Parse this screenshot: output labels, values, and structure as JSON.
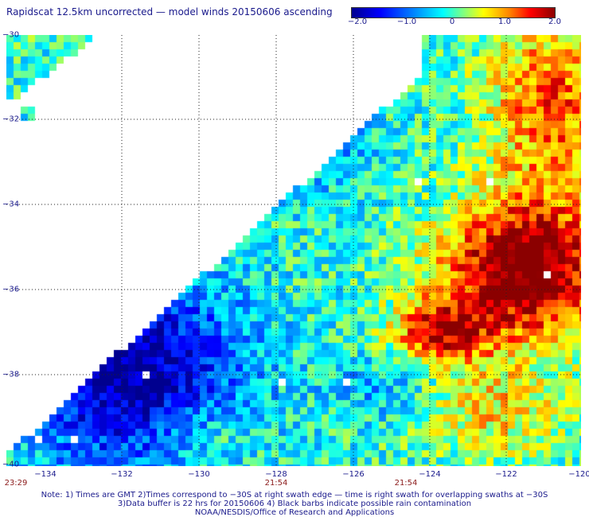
{
  "title": "Rapidscat 12.5km uncorrected — model winds 20150606 ascending",
  "colorbar": {
    "labels": [
      "−2.0",
      "−1.0",
      "0",
      "1.0",
      "2.0"
    ],
    "min": -2.0,
    "max": 2.0
  },
  "axes": {
    "x_ticks": [
      "−134",
      "−132",
      "−130",
      "−128",
      "−126",
      "−124",
      "−122",
      "−120"
    ],
    "y_ticks": [
      "−30",
      "−32",
      "−34",
      "−36",
      "−38",
      "−40"
    ],
    "lon_range": [
      -135,
      -120
    ],
    "lat_range": [
      -30,
      -40
    ]
  },
  "times": [
    "23:29",
    "21:54",
    "21:54"
  ],
  "notes": {
    "line1": "Note: 1) Times are GMT 2)Times correspond to −30S at right swath edge — time is right swath for overlapping swaths at −30S",
    "line2": "3)Data buffer is 22 hrs for 20150606 4) Black barbs indicate possible rain contamination",
    "line3": "NOAA/NESDIS/Office of Research and Applications"
  }
}
